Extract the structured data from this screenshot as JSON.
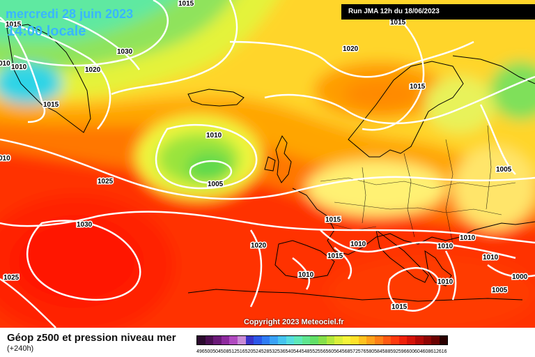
{
  "header": {
    "date": "mercredi 28 juin 2023",
    "time": "14:00 locale",
    "run": "Run JMA 12h du 18/06/2023"
  },
  "footer": {
    "copyright": "Copyright 2023 Meteociel.fr",
    "caption": "Géop z500 et pression niveau mer",
    "range": "(+240h)"
  },
  "isobar_labels": [
    "1015",
    "1015",
    "1030",
    "1020",
    "1010",
    "1015",
    "010",
    "010",
    "1010",
    "1005",
    "1025",
    "1030",
    "1025",
    "1020",
    "1020",
    "1015",
    "1015",
    "1005",
    "1015",
    "1010",
    "1015",
    "1010",
    "1010",
    "1010",
    "1010",
    "1010",
    "1005",
    "1000",
    "1015"
  ],
  "legend": {
    "values": [
      "496",
      "500",
      "504",
      "508",
      "512",
      "516",
      "520",
      "524",
      "528",
      "532",
      "536",
      "540",
      "544",
      "548",
      "552",
      "556",
      "560",
      "564",
      "568",
      "572",
      "576",
      "580",
      "584",
      "588",
      "592",
      "596",
      "600",
      "604",
      "608",
      "612",
      "616"
    ],
    "colors": [
      "#2b0a2e",
      "#4a0f52",
      "#6b1a78",
      "#8e2a9e",
      "#b04ac0",
      "#c98ad6",
      "#3a33c8",
      "#2c57e8",
      "#2f7cf5",
      "#39a2f7",
      "#46c4f0",
      "#56dde0",
      "#5ee9b9",
      "#5fe690",
      "#62e068",
      "#86e04a",
      "#b3e83d",
      "#dbf03a",
      "#f5f53a",
      "#ffe22a",
      "#ffc21f",
      "#ffa11a",
      "#ff7f16",
      "#ff5a12",
      "#ff3a0e",
      "#f0200a",
      "#d41208",
      "#b20806",
      "#8e0404",
      "#6a0202",
      "#2a0000"
    ]
  }
}
